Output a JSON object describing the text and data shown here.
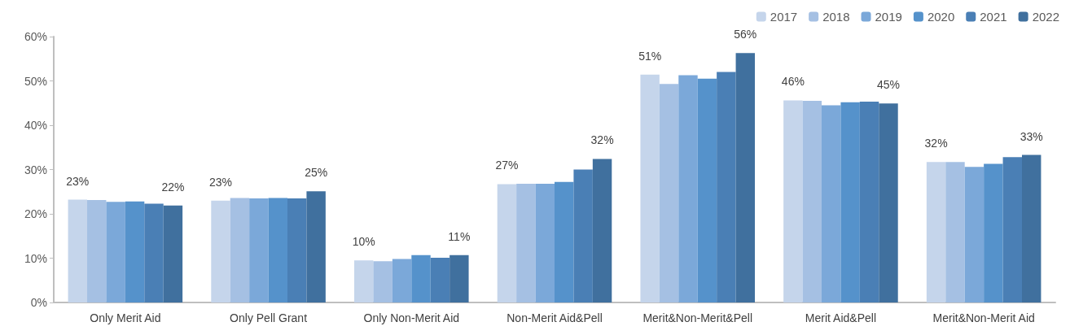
{
  "chart_data": {
    "type": "bar",
    "categories": [
      "Only Merit Aid",
      "Only Pell Grant",
      "Only Non-Merit Aid",
      "Non-Merit Aid&Pell",
      "Merit&Non-Merit&Pell",
      "Merit Aid&Pell",
      "Merit&Non-Merit Aid"
    ],
    "series": [
      {
        "name": "2017",
        "color": "#c5d5eb",
        "values": [
          23.2,
          23.0,
          9.5,
          26.7,
          51.4,
          45.6,
          31.7
        ],
        "value_labels": [
          "23%",
          "23%",
          "10%",
          "27%",
          "51%",
          "46%",
          "32%"
        ]
      },
      {
        "name": "2018",
        "color": "#a5c0e3",
        "values": [
          23.1,
          23.6,
          9.3,
          26.8,
          49.3,
          45.5,
          31.7
        ]
      },
      {
        "name": "2019",
        "color": "#7ba8d9",
        "values": [
          22.7,
          23.5,
          9.8,
          26.8,
          51.3,
          44.5,
          30.6
        ]
      },
      {
        "name": "2020",
        "color": "#5592cb",
        "values": [
          22.8,
          23.6,
          10.7,
          27.2,
          50.5,
          45.2,
          31.3
        ]
      },
      {
        "name": "2021",
        "color": "#4a7fb5",
        "values": [
          22.3,
          23.5,
          10.1,
          30.0,
          52.0,
          45.3,
          32.8
        ]
      },
      {
        "name": "2022",
        "color": "#40709e",
        "values": [
          21.9,
          25.1,
          10.7,
          32.4,
          56.3,
          44.9,
          33.3
        ],
        "value_labels": [
          "22%",
          "25%",
          "11%",
          "32%",
          "56%",
          "45%",
          "33%"
        ]
      }
    ],
    "ylim": [
      0,
      60
    ],
    "yticks": [
      {
        "value": 0,
        "label": "0%"
      },
      {
        "value": 10,
        "label": "10%"
      },
      {
        "value": 20,
        "label": "20%"
      },
      {
        "value": 30,
        "label": "30%"
      },
      {
        "value": 40,
        "label": "40%"
      },
      {
        "value": 50,
        "label": "50%"
      },
      {
        "value": 60,
        "label": "60%"
      }
    ],
    "grid": false,
    "legend": "top right"
  }
}
